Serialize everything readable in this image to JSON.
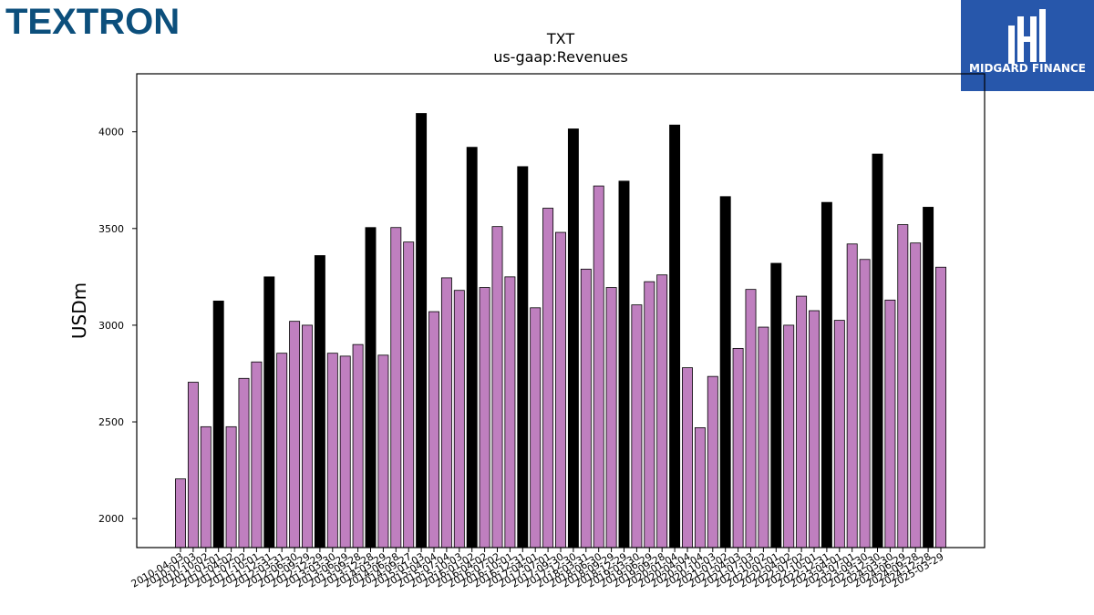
{
  "logos": {
    "left_text": "TEXTRON",
    "right_text": "MIDGARD FINANCE"
  },
  "colors": {
    "bar_regular": "#bf7fbf",
    "bar_highlight": "#000000",
    "logo_left": "#0c4f7c",
    "logo_right_bg": "#2757ab"
  },
  "chart_data": {
    "type": "bar",
    "title": "TXT",
    "subtitle": "us-gaap:Revenues",
    "xlabel": "",
    "ylabel": "USDm",
    "ylim": [
      1850,
      4300
    ],
    "yticks": [
      2000,
      2500,
      3000,
      3500,
      4000
    ],
    "grid": false,
    "categories": [
      "2010-04-03",
      "2010-07-03",
      "2010-10-02",
      "2011-01-01",
      "2011-04-02",
      "2011-07-02",
      "2011-10-01",
      "2011-12-31",
      "2012-03-31",
      "2012-06-30",
      "2012-09-29",
      "2012-12-29",
      "2013-03-30",
      "2013-06-29",
      "2013-09-28",
      "2013-12-28",
      "2014-03-29",
      "2014-06-28",
      "2014-09-27",
      "2015-01-03",
      "2015-04-04",
      "2015-07-04",
      "2015-10-03",
      "2016-01-02",
      "2016-04-02",
      "2016-07-02",
      "2016-10-01",
      "2016-12-31",
      "2017-04-01",
      "2017-07-01",
      "2017-09-30",
      "2017-12-30",
      "2018-03-31",
      "2018-06-30",
      "2018-09-29",
      "2018-12-29",
      "2019-03-30",
      "2019-06-29",
      "2019-09-28",
      "2020-01-04",
      "2020-04-04",
      "2020-07-04",
      "2020-10-03",
      "2021-01-02",
      "2021-04-03",
      "2021-07-03",
      "2021-10-02",
      "2022-01-01",
      "2022-04-02",
      "2022-07-02",
      "2022-10-01",
      "2022-12-31",
      "2023-04-01",
      "2023-07-01",
      "2023-09-30",
      "2023-12-30",
      "2024-03-30",
      "2024-06-29",
      "2024-09-28",
      "2024-12-28",
      "2025-03-29"
    ],
    "values": [
      2205,
      2705,
      2475,
      3125,
      2475,
      2725,
      2810,
      3250,
      2855,
      3020,
      3000,
      3360,
      2855,
      2840,
      2900,
      3505,
      2845,
      3505,
      3430,
      4095,
      3070,
      3245,
      3180,
      3920,
      3195,
      3510,
      3250,
      3820,
      3090,
      3605,
      3480,
      4015,
      3290,
      3720,
      3195,
      3745,
      3105,
      3225,
      3260,
      4035,
      2780,
      2470,
      2735,
      3665,
      2880,
      3185,
      2990,
      3320,
      3000,
      3150,
      3075,
      3635,
      3025,
      3420,
      3340,
      3885,
      3130,
      3520,
      3425,
      3610,
      3300
    ],
    "highlight_indices": [
      3,
      7,
      11,
      15,
      19,
      23,
      27,
      31,
      35,
      39,
      43,
      47,
      51,
      55,
      59
    ]
  }
}
